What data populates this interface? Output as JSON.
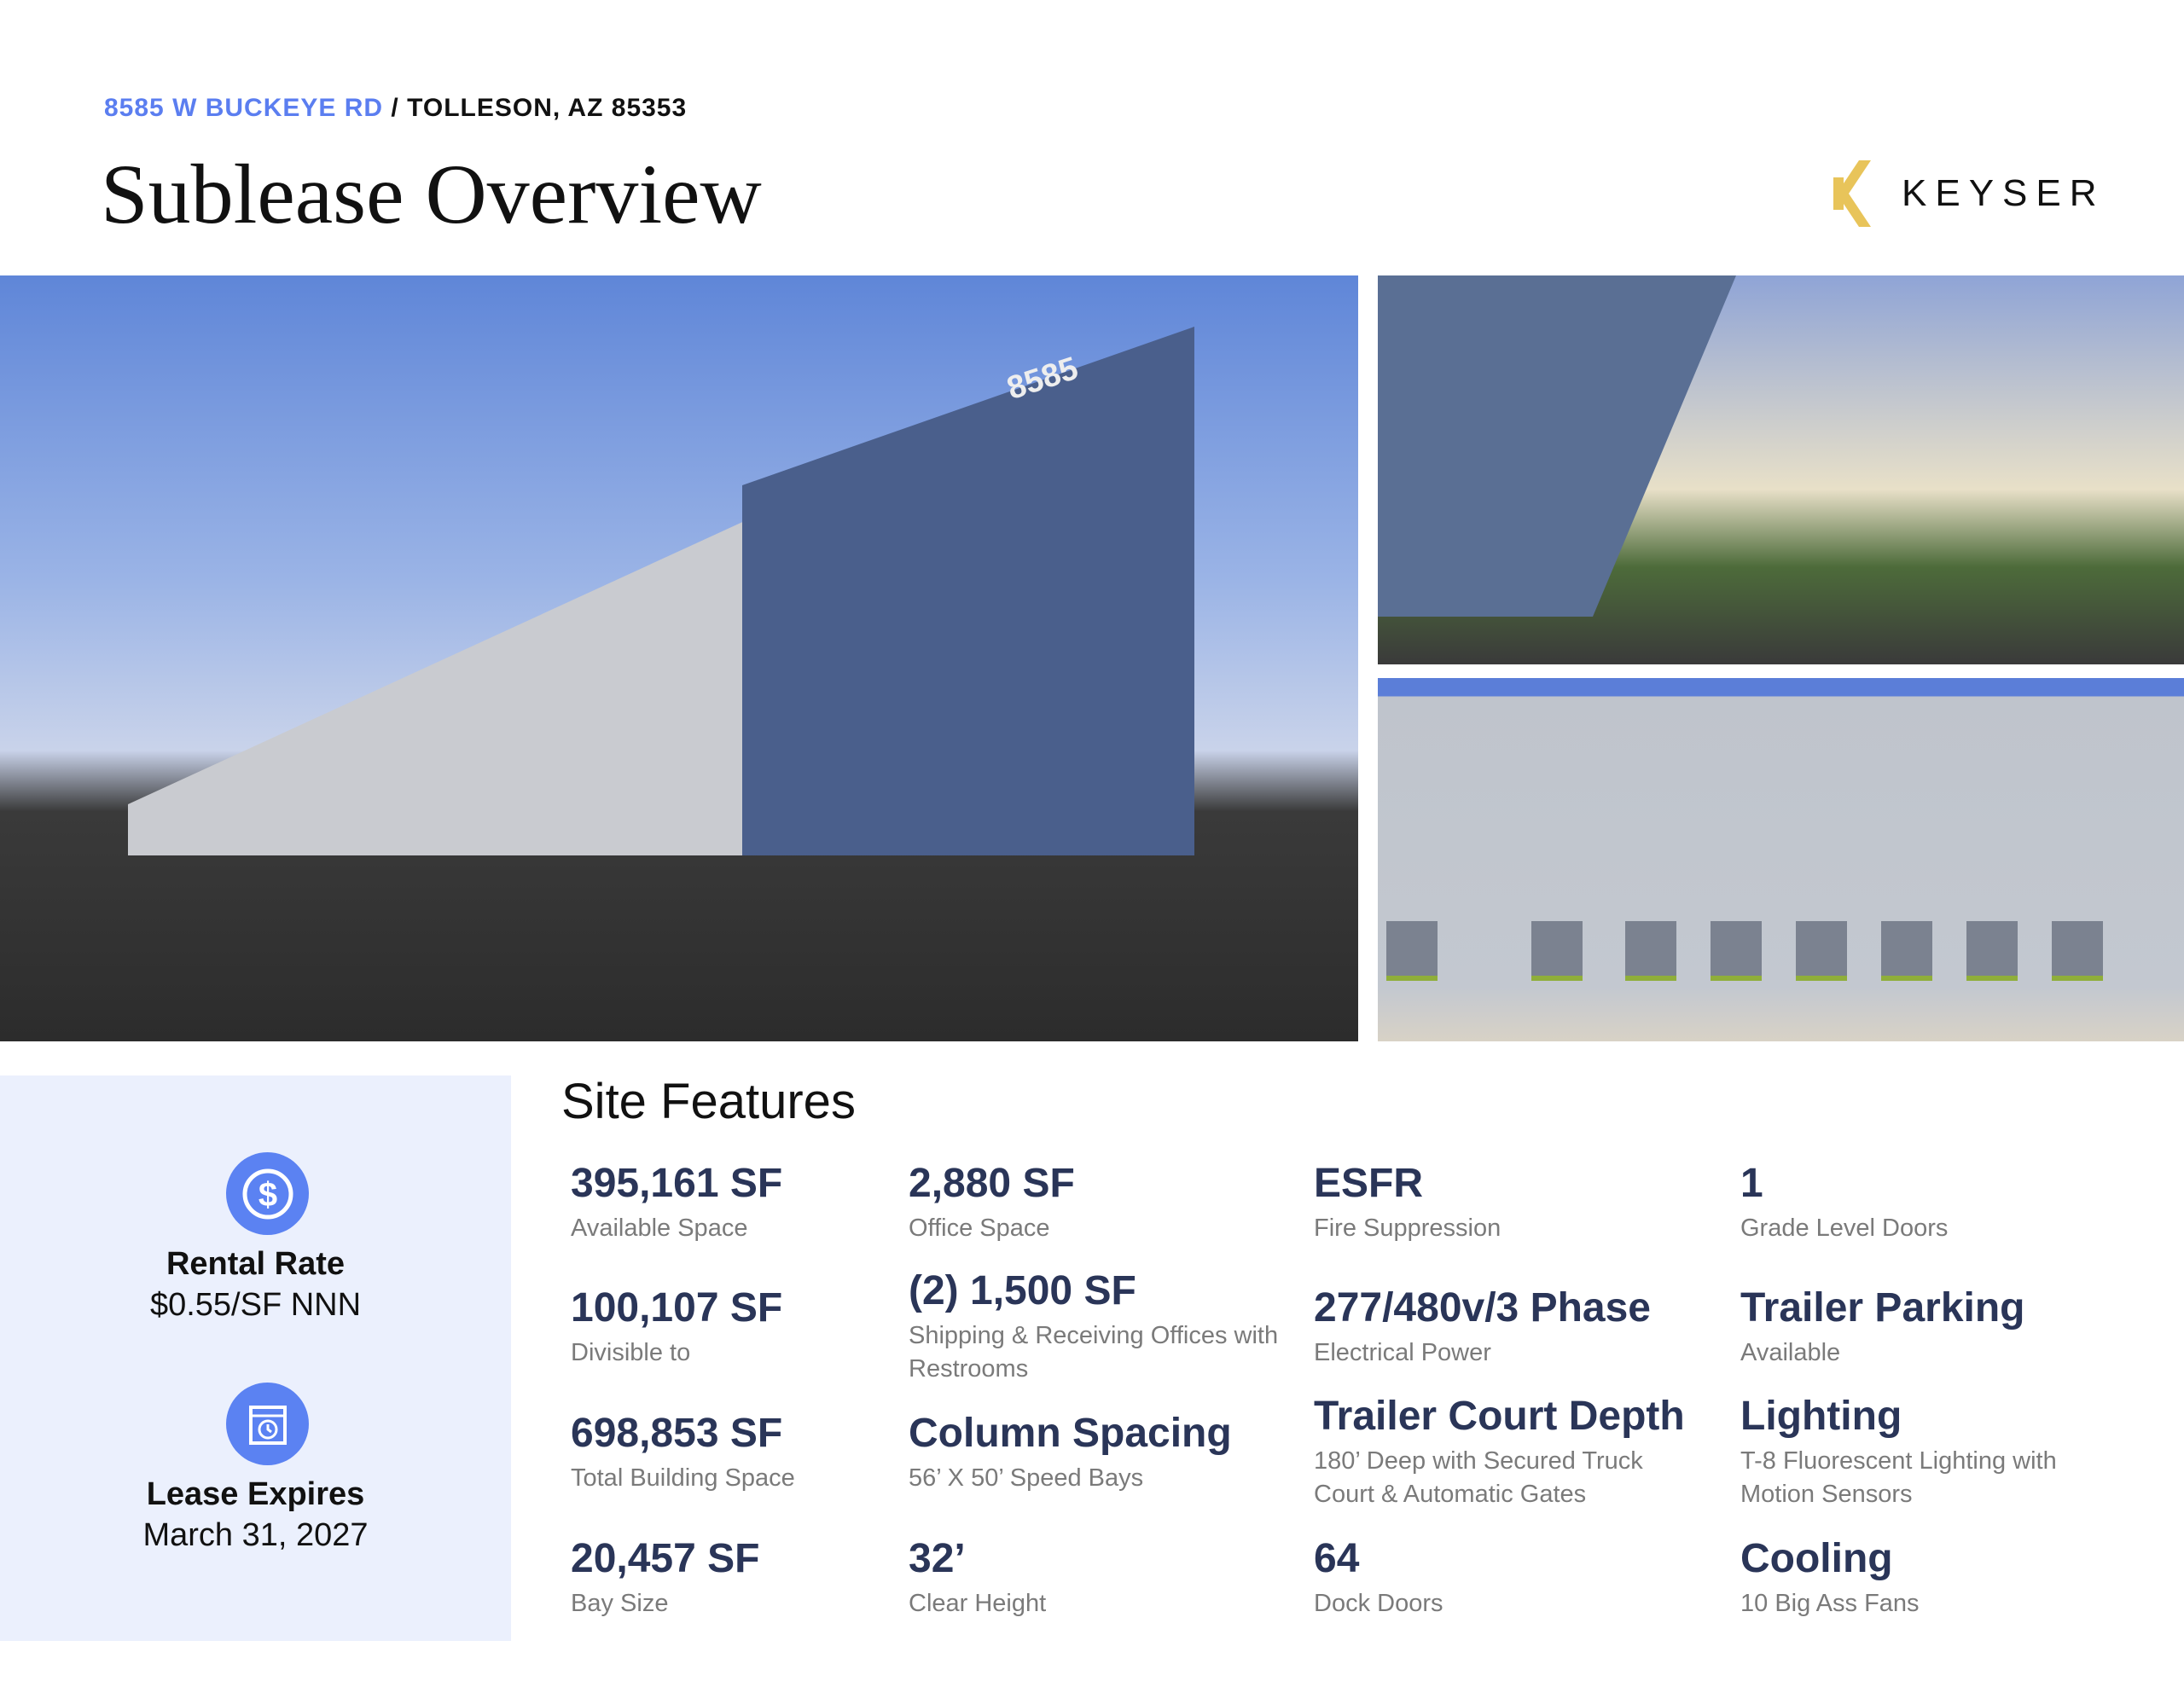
{
  "header": {
    "address_street": "8585 W BUCKEYE RD",
    "address_city": " / TOLLESON, AZ 85353",
    "title": "Sublease Overview",
    "logo": "KEYSER",
    "accent": "#5b7ef0"
  },
  "photos": {
    "main_building_number": "8585"
  },
  "summary": [
    {
      "icon": "dollar-icon",
      "title": "Rental Rate",
      "value": "$0.55/SF NNN"
    },
    {
      "icon": "calendar-clock-icon",
      "title": "Lease Expires",
      "value": "March 31, 2027"
    }
  ],
  "site_features": {
    "title": "Site Features",
    "items": [
      {
        "value": "395,161 SF",
        "label": "Available Space"
      },
      {
        "value": "100,107 SF",
        "label": "Divisible to"
      },
      {
        "value": "698,853 SF",
        "label": "Total Building Space"
      },
      {
        "value": "20,457 SF",
        "label": "Bay Size"
      },
      {
        "value": "2,880 SF",
        "label": "Office Space"
      },
      {
        "value": "(2) 1,500 SF",
        "label": "Shipping & Receiving Offices with Restrooms"
      },
      {
        "value": "Column Spacing",
        "label": "56’ X 50’ Speed Bays"
      },
      {
        "value": "32’",
        "label": "Clear Height"
      },
      {
        "value": "ESFR",
        "label": "Fire Suppression"
      },
      {
        "value": "277/480v/3 Phase",
        "label": "Electrical Power"
      },
      {
        "value": "Trailer Court Depth",
        "label": "180’ Deep with Secured Truck Court & Automatic Gates"
      },
      {
        "value": "64",
        "label": "Dock Doors"
      },
      {
        "value": "1",
        "label": "Grade Level Doors"
      },
      {
        "value": "Trailer Parking",
        "label": "Available"
      },
      {
        "value": "Lighting",
        "label": "T-8 Fluorescent Lighting with Motion Sensors"
      },
      {
        "value": "Cooling",
        "label": "10 Big Ass Fans"
      }
    ]
  }
}
